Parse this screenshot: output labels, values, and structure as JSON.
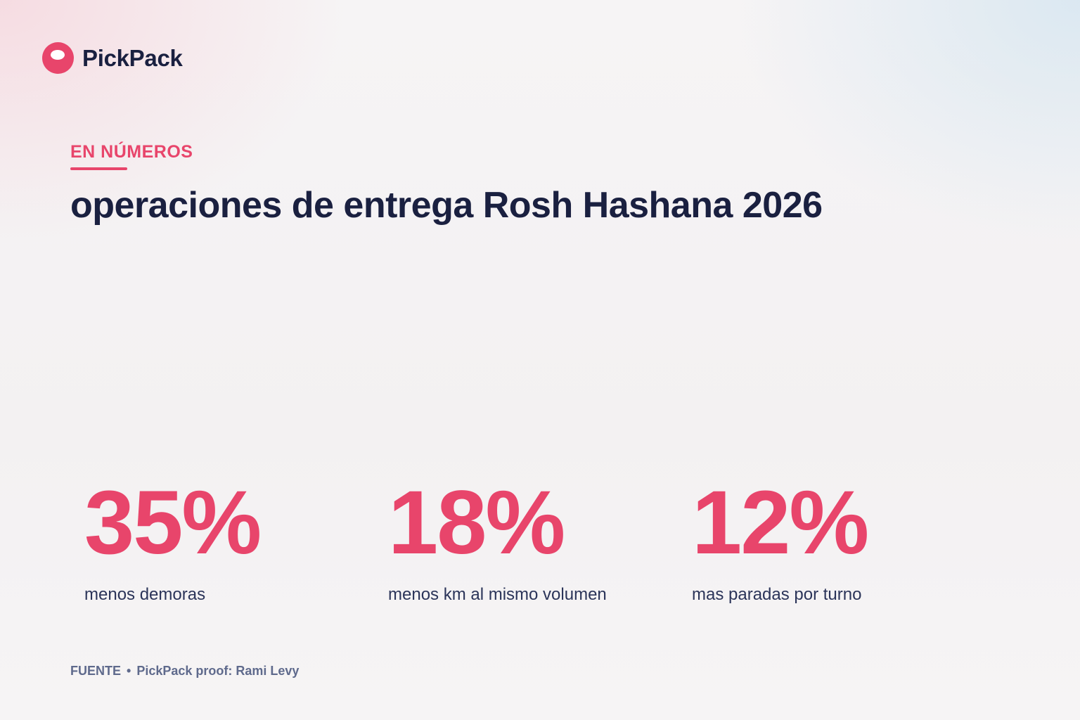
{
  "brand": {
    "name": "PickPack",
    "icon": "pickpack-logo-icon",
    "accent_color": "#e8456b",
    "text_color": "#1a2040"
  },
  "header": {
    "eyebrow": "EN NÚMEROS",
    "title": "operaciones de entrega Rosh Hashana 2026"
  },
  "stats": [
    {
      "value": "35%",
      "label": "menos demoras"
    },
    {
      "value": "18%",
      "label": "menos km al mismo volumen"
    },
    {
      "value": "12%",
      "label": "mas paradas por turno"
    }
  ],
  "source": {
    "label": "FUENTE",
    "separator": "•",
    "text": "PickPack proof: Rami Levy"
  }
}
